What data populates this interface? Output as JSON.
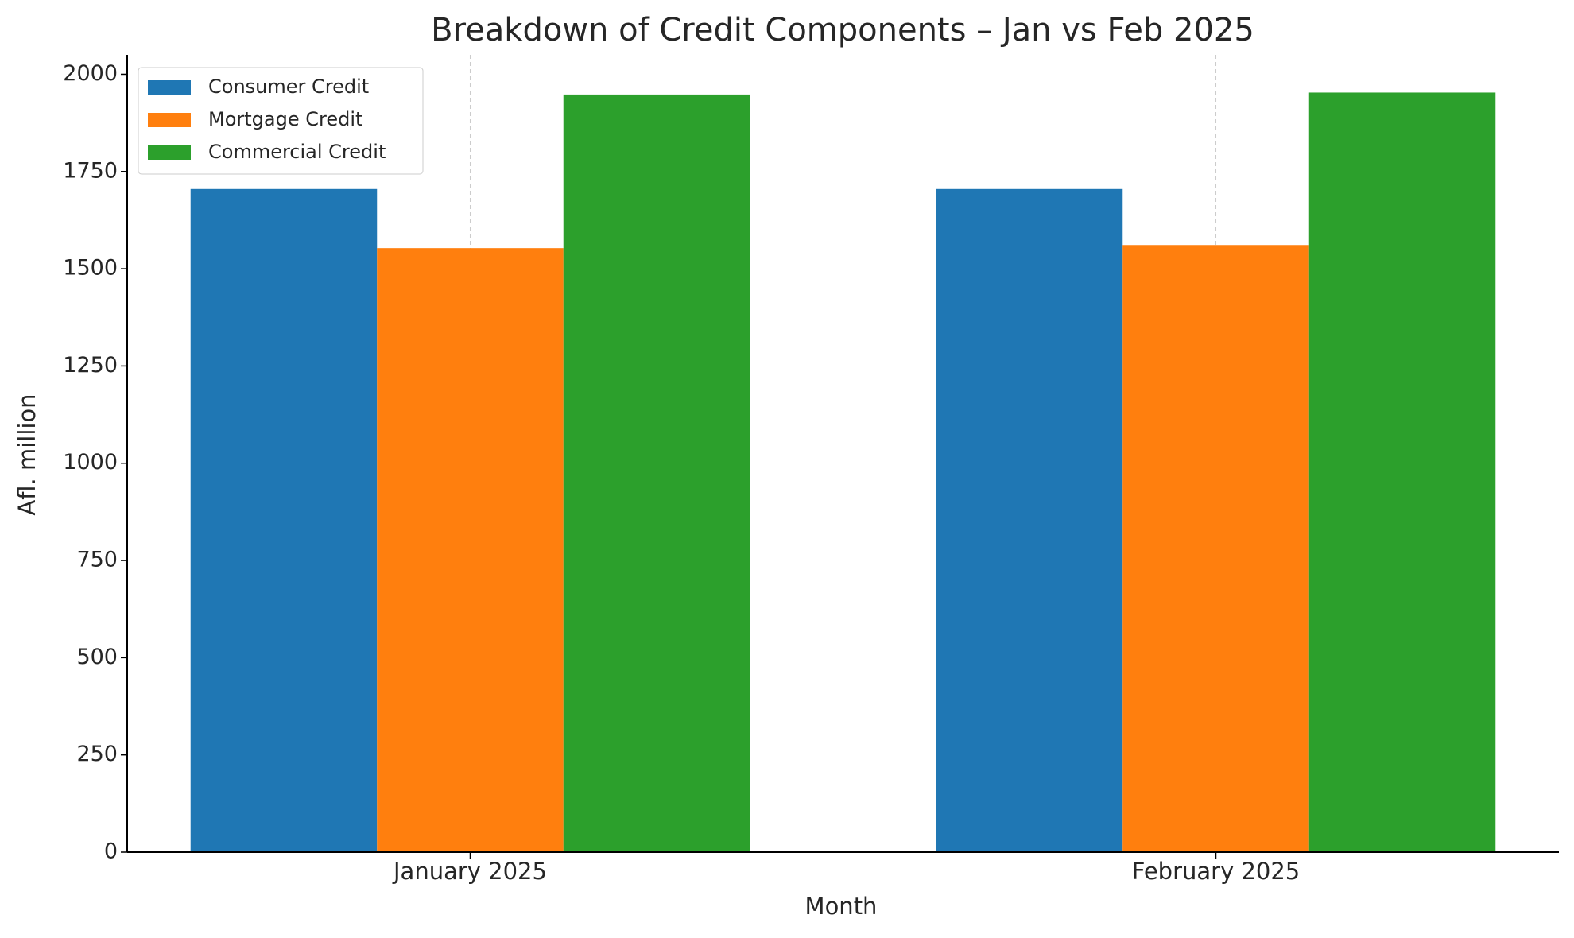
{
  "chart_data": {
    "type": "bar",
    "title": "Breakdown of Credit Components – Jan vs Feb 2025",
    "x_label": "Month",
    "y_label": "Afl. million",
    "categories": [
      "January 2025",
      "February 2025"
    ],
    "series": [
      {
        "name": "Consumer Credit",
        "color": "#1f77b4",
        "values": [
          1705,
          1705
        ]
      },
      {
        "name": "Mortgage Credit",
        "color": "#ff7f0e",
        "values": [
          1553,
          1561
        ]
      },
      {
        "name": "Commercial Credit",
        "color": "#2ca02c",
        "values": [
          1948,
          1953
        ]
      }
    ],
    "ylim": [
      0,
      2050
    ],
    "yticks": [
      0,
      250,
      500,
      750,
      1000,
      1250,
      1500,
      1750,
      2000
    ],
    "x_grid": true,
    "legend": "upper-left"
  }
}
